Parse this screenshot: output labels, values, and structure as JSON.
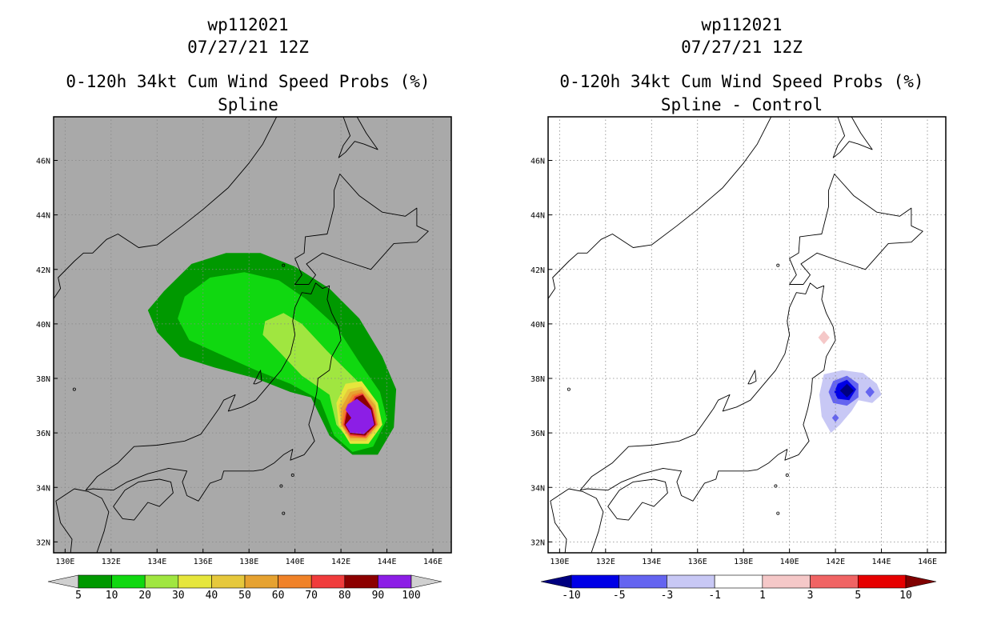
{
  "colors": {
    "land_bg": "#a9a9a9",
    "white_bg": "#ffffff",
    "coast": "#000000",
    "grid": "#888888"
  },
  "panels": [
    {
      "id": "left",
      "title_lines": [
        "wp112021",
        "07/27/21 12Z",
        "0-120h 34kt Cum Wind Speed Probs (%)",
        "Spline"
      ],
      "background": "gray"
    },
    {
      "id": "right",
      "title_lines": [
        "wp112021",
        "07/27/21 12Z",
        "0-120h 34kt Cum Wind Speed Probs (%)",
        "Spline - Control"
      ],
      "background": "white"
    }
  ],
  "chart_data": [
    {
      "type": "heatmap",
      "name": "Spline",
      "title": "0-120h 34kt Cum Wind Speed Probs (%)",
      "subtitle": "Spline",
      "storm": "wp112021",
      "time": "07/27/21 12Z",
      "xlim": [
        129.5,
        146.8
      ],
      "ylim": [
        31.6,
        47.6
      ],
      "x_ticks": [
        130,
        132,
        134,
        136,
        138,
        140,
        142,
        144,
        146
      ],
      "x_tick_labels": [
        "130E",
        "132E",
        "134E",
        "136E",
        "138E",
        "140E",
        "142E",
        "144E",
        "146E"
      ],
      "y_ticks": [
        32,
        34,
        36,
        38,
        40,
        42,
        44,
        46
      ],
      "y_tick_labels": [
        "32N",
        "34N",
        "36N",
        "38N",
        "40N",
        "42N",
        "44N",
        "46N"
      ],
      "colorbar": {
        "labels": [
          "5",
          "10",
          "20",
          "30",
          "40",
          "50",
          "60",
          "70",
          "80",
          "90",
          "100"
        ],
        "colors": [
          "#009900",
          "#10d810",
          "#a0e640",
          "#e6e63c",
          "#e6c83c",
          "#e6a230",
          "#f08228",
          "#f03c3c",
          "#8c0000",
          "#8c1ee6"
        ],
        "under": "#d0d0d0",
        "over": "#d0d0d0"
      },
      "contours": [
        {
          "level": 5,
          "color": "#009900",
          "polygon": [
            [
              134.3,
              41.2
            ],
            [
              135.5,
              42.2
            ],
            [
              137,
              42.6
            ],
            [
              138.5,
              42.6
            ],
            [
              140,
              42.1
            ],
            [
              141.5,
              41.3
            ],
            [
              142.8,
              40.2
            ],
            [
              143.8,
              38.8
            ],
            [
              144.4,
              37.6
            ],
            [
              144.3,
              36.2
            ],
            [
              143.6,
              35.2
            ],
            [
              142.5,
              35.2
            ],
            [
              141.5,
              35.9
            ],
            [
              140.7,
              37.3
            ],
            [
              139.8,
              37.5
            ],
            [
              138.3,
              38
            ],
            [
              136.5,
              38.4
            ],
            [
              135,
              38.8
            ],
            [
              134,
              39.7
            ],
            [
              133.6,
              40.5
            ]
          ]
        },
        {
          "level": 10,
          "color": "#10d810",
          "polygon": [
            [
              135.2,
              41
            ],
            [
              136.3,
              41.7
            ],
            [
              137.8,
              41.9
            ],
            [
              139.3,
              41.6
            ],
            [
              140.5,
              40.9
            ],
            [
              141.8,
              39.9
            ],
            [
              142.8,
              38.6
            ],
            [
              143.7,
              37.5
            ],
            [
              144,
              36.5
            ],
            [
              143.4,
              35.5
            ],
            [
              142.5,
              35.3
            ],
            [
              141.7,
              35.9
            ],
            [
              141.1,
              37.2
            ],
            [
              139.8,
              37.8
            ],
            [
              138.3,
              38.3
            ],
            [
              136.7,
              38.9
            ],
            [
              135.4,
              39.4
            ],
            [
              134.9,
              40.2
            ]
          ]
        },
        {
          "level": 20,
          "color": "#a0e640",
          "polygon": [
            [
              138.7,
              40.1
            ],
            [
              139.5,
              40.4
            ],
            [
              140.3,
              40
            ],
            [
              141.4,
              39
            ],
            [
              142.6,
              38
            ],
            [
              143.5,
              37.2
            ],
            [
              143.7,
              36.3
            ],
            [
              143,
              35.7
            ],
            [
              142.4,
              35.7
            ],
            [
              141.8,
              36.3
            ],
            [
              141.5,
              37.4
            ],
            [
              140.3,
              38.1
            ],
            [
              139.4,
              38.9
            ],
            [
              138.6,
              39.6
            ]
          ]
        },
        {
          "level": 30,
          "color": "#e6e63c",
          "polygon": [
            [
              142.2,
              37.8
            ],
            [
              142.9,
              37.9
            ],
            [
              143.6,
              37.1
            ],
            [
              143.8,
              36.3
            ],
            [
              143.2,
              35.6
            ],
            [
              142.4,
              35.6
            ],
            [
              141.9,
              36.3
            ],
            [
              141.8,
              37.1
            ]
          ]
        },
        {
          "level": 40,
          "color": "#e6c83c",
          "polygon": [
            [
              142.3,
              37.6
            ],
            [
              142.9,
              37.7
            ],
            [
              143.5,
              37.1
            ],
            [
              143.7,
              36.3
            ],
            [
              143.1,
              35.7
            ],
            [
              142.4,
              35.7
            ],
            [
              142,
              36.3
            ],
            [
              141.9,
              37
            ]
          ]
        },
        {
          "level": 50,
          "color": "#e6a230",
          "polygon": [
            [
              142.4,
              37.5
            ],
            [
              142.9,
              37.6
            ],
            [
              143.5,
              37
            ],
            [
              143.6,
              36.3
            ],
            [
              143.1,
              35.8
            ],
            [
              142.4,
              35.8
            ],
            [
              142,
              36.3
            ],
            [
              142,
              36.9
            ]
          ]
        },
        {
          "level": 60,
          "color": "#f08228",
          "polygon": [
            [
              142.5,
              37.4
            ],
            [
              142.9,
              37.5
            ],
            [
              143.4,
              36.9
            ],
            [
              143.6,
              36.3
            ],
            [
              143.1,
              35.8
            ],
            [
              142.4,
              35.85
            ],
            [
              142.05,
              36.3
            ],
            [
              142.1,
              36.8
            ]
          ]
        },
        {
          "level": 70,
          "color": "#f03c3c",
          "polygon": [
            [
              142.6,
              37.35
            ],
            [
              142.95,
              37.45
            ],
            [
              143.4,
              36.9
            ],
            [
              143.55,
              36.3
            ],
            [
              143.05,
              35.85
            ],
            [
              142.4,
              35.9
            ],
            [
              142.1,
              36.3
            ],
            [
              142.2,
              36.75
            ]
          ]
        },
        {
          "level": 80,
          "color": "#8c0000",
          "polygon": [
            [
              142.65,
              37.3
            ],
            [
              142.95,
              37.4
            ],
            [
              143.35,
              36.9
            ],
            [
              143.5,
              36.3
            ],
            [
              143.05,
              35.9
            ],
            [
              142.4,
              35.95
            ],
            [
              142.15,
              36.3
            ],
            [
              142.25,
              36.75
            ]
          ]
        },
        {
          "level": 90,
          "color": "#8c1ee6",
          "polygon": [
            [
              142.7,
              37.25
            ],
            [
              143.3,
              36.85
            ],
            [
              143.45,
              36.3
            ],
            [
              143,
              35.95
            ],
            [
              142.4,
              36
            ],
            [
              142.2,
              36.3
            ],
            [
              142.45,
              36.55
            ],
            [
              142.2,
              36.85
            ],
            [
              142.3,
              37.05
            ]
          ]
        }
      ]
    },
    {
      "type": "heatmap",
      "name": "Spline - Control",
      "title": "0-120h 34kt Cum Wind Speed Probs (%)",
      "subtitle": "Spline - Control",
      "storm": "wp112021",
      "time": "07/27/21 12Z",
      "xlim": [
        129.5,
        146.8
      ],
      "ylim": [
        31.6,
        47.6
      ],
      "x_ticks": [
        130,
        132,
        134,
        136,
        138,
        140,
        142,
        144,
        146
      ],
      "x_tick_labels": [
        "130E",
        "132E",
        "134E",
        "136E",
        "138E",
        "140E",
        "142E",
        "144E",
        "146E"
      ],
      "y_ticks": [
        32,
        34,
        36,
        38,
        40,
        42,
        44,
        46
      ],
      "y_tick_labels": [
        "32N",
        "34N",
        "36N",
        "38N",
        "40N",
        "42N",
        "44N",
        "46N"
      ],
      "colorbar": {
        "labels": [
          "-10",
          "-5",
          "-3",
          "-1",
          "1",
          "3",
          "5",
          "10"
        ],
        "colors": [
          "#0000e6",
          "#6464f0",
          "#c8c8f5",
          "#ffffff",
          "#f5c8c8",
          "#f06464",
          "#e60000"
        ],
        "under": "#000080",
        "over": "#800000"
      },
      "contours": [
        {
          "level": 1,
          "color": "#f5c8c8",
          "polygon": [
            [
              141.5,
              39.75
            ],
            [
              141.75,
              39.5
            ],
            [
              141.5,
              39.25
            ],
            [
              141.25,
              39.5
            ]
          ]
        },
        {
          "level": -1,
          "color": "#c8c8f5",
          "polygon": [
            [
              141.5,
              38.15
            ],
            [
              142.3,
              38.3
            ],
            [
              143.2,
              38.2
            ],
            [
              143.8,
              37.8
            ],
            [
              144,
              37.4
            ],
            [
              143.6,
              37.1
            ],
            [
              143,
              37.2
            ],
            [
              142.7,
              36.8
            ],
            [
              142.2,
              36.3
            ],
            [
              141.8,
              36
            ],
            [
              141.4,
              36.6
            ],
            [
              141.3,
              37.4
            ]
          ]
        },
        {
          "level": -3,
          "color": "#6464f0",
          "polygon": [
            [
              141.9,
              37.9
            ],
            [
              142.5,
              38.1
            ],
            [
              143,
              37.8
            ],
            [
              143,
              37.3
            ],
            [
              142.5,
              37
            ],
            [
              141.9,
              37.1
            ],
            [
              141.7,
              37.5
            ]
          ]
        },
        {
          "level": -3,
          "color": "#6464f0",
          "polygon": [
            [
              143.5,
              37.7
            ],
            [
              143.7,
              37.5
            ],
            [
              143.5,
              37.3
            ],
            [
              143.3,
              37.5
            ]
          ]
        },
        {
          "level": -3,
          "color": "#6464f0",
          "polygon": [
            [
              142,
              36.7
            ],
            [
              142.15,
              36.55
            ],
            [
              142,
              36.4
            ],
            [
              141.85,
              36.55
            ]
          ]
        },
        {
          "level": -5,
          "color": "#0000e6",
          "polygon": [
            [
              142.1,
              37.8
            ],
            [
              142.5,
              37.95
            ],
            [
              142.9,
              37.6
            ],
            [
              142.6,
              37.2
            ],
            [
              142.1,
              37.25
            ],
            [
              141.95,
              37.5
            ]
          ]
        },
        {
          "level": -10,
          "color": "#000080",
          "polygon": [
            [
              142.5,
              37.8
            ],
            [
              142.8,
              37.55
            ],
            [
              142.5,
              37.3
            ],
            [
              142.2,
              37.55
            ]
          ]
        }
      ]
    }
  ]
}
